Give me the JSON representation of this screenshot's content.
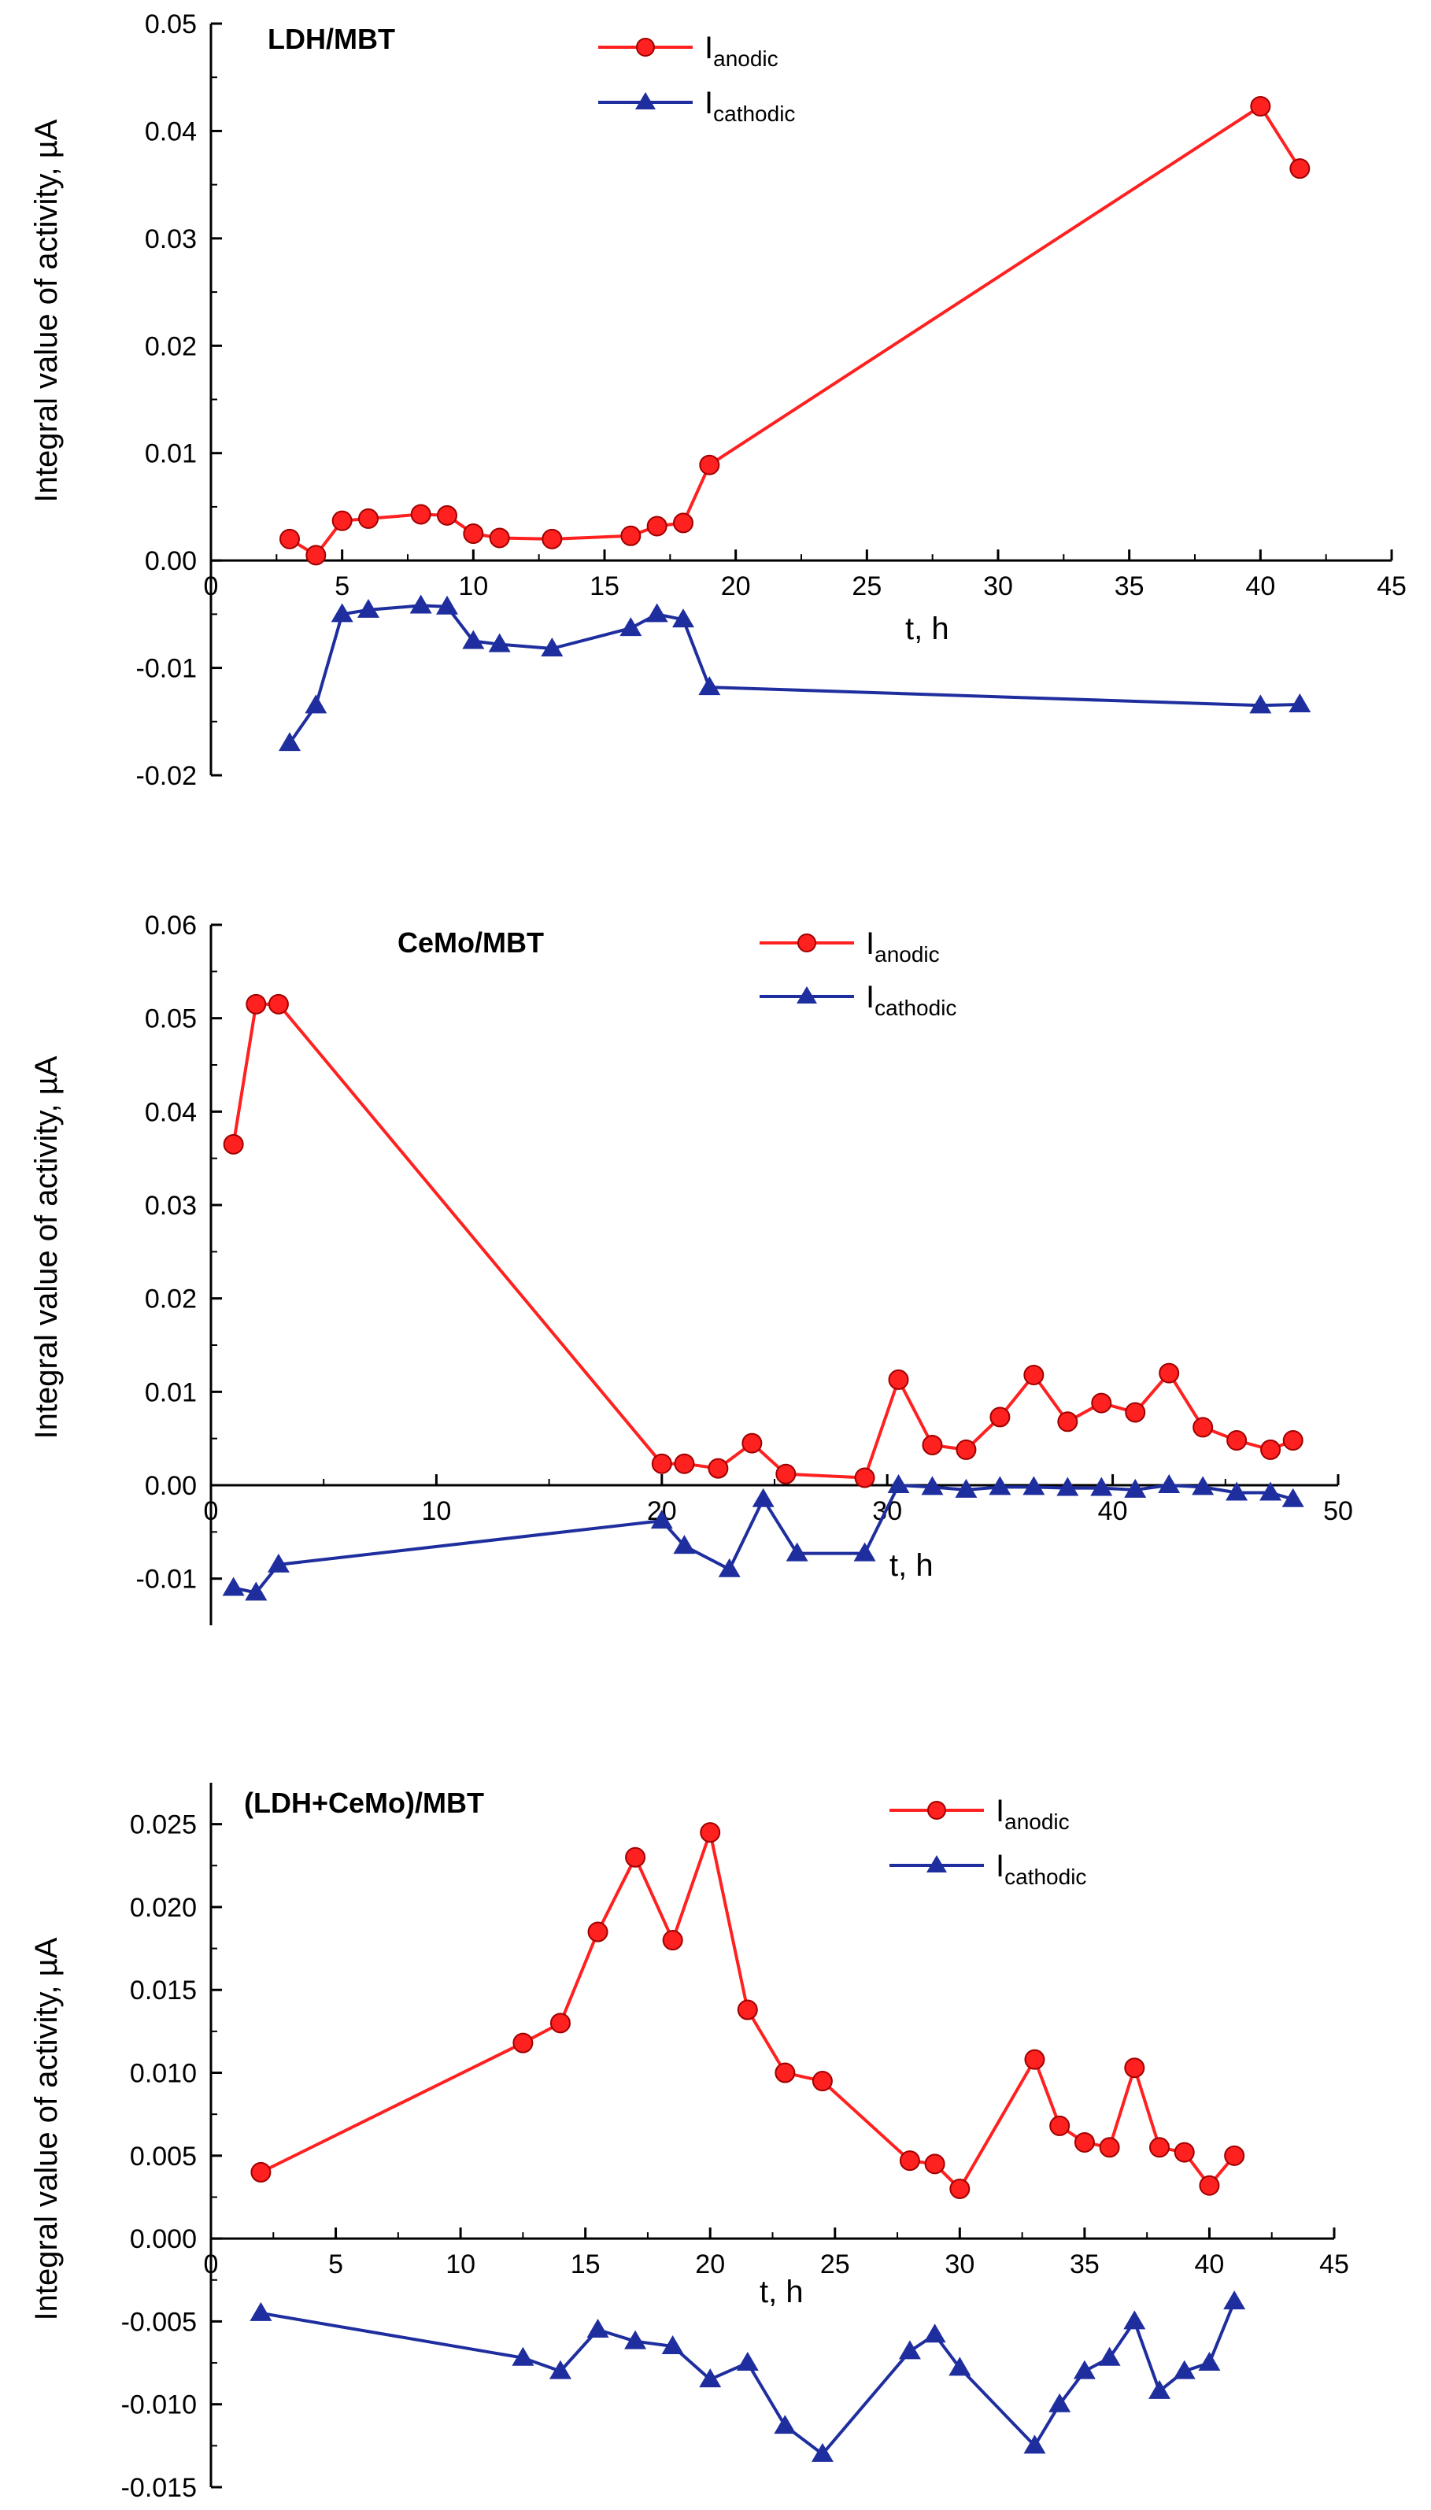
{
  "colors": {
    "anodic": "#ff2020",
    "cathodic": "#1f2e9e",
    "axis": "#000000"
  },
  "chart_data": [
    {
      "type": "line",
      "title": "LDH/MBT",
      "xlabel": "t, h",
      "ylabel": "Integral value of activity, µA",
      "xlim": [
        0,
        45
      ],
      "ylim": [
        -0.02,
        0.05
      ],
      "xticks": [
        {
          "v": 0,
          "label": "0"
        },
        {
          "v": 5,
          "label": "5"
        },
        {
          "v": 10,
          "label": "10"
        },
        {
          "v": 15,
          "label": "15"
        },
        {
          "v": 20,
          "label": "20"
        },
        {
          "v": 25,
          "label": "25"
        },
        {
          "v": 30,
          "label": "30"
        },
        {
          "v": 35,
          "label": "35"
        },
        {
          "v": 40,
          "label": "40"
        },
        {
          "v": 45,
          "label": "45"
        }
      ],
      "yticks": [
        {
          "v": -0.02,
          "label": "-0.02"
        },
        {
          "v": -0.01,
          "label": "-0.01"
        },
        {
          "v": 0.0,
          "label": "0.00"
        },
        {
          "v": 0.01,
          "label": "0.01"
        },
        {
          "v": 0.02,
          "label": "0.02"
        },
        {
          "v": 0.03,
          "label": "0.03"
        },
        {
          "v": 0.04,
          "label": "0.04"
        },
        {
          "v": 0.05,
          "label": "0.05"
        }
      ],
      "legend": {
        "position": "top-center"
      },
      "series": [
        {
          "name": "I",
          "name_sub": "anodic",
          "color": "#ff2020",
          "marker": "circle",
          "x": [
            3,
            4,
            5,
            6,
            8,
            9,
            10,
            11,
            13,
            16,
            17,
            18,
            19,
            40,
            41.5
          ],
          "y": [
            0.002,
            0.0005,
            0.0037,
            0.0039,
            0.0043,
            0.0042,
            0.0025,
            0.0021,
            0.002,
            0.0023,
            0.0032,
            0.0035,
            0.0089,
            0.0423,
            0.0365
          ]
        },
        {
          "name": "I",
          "name_sub": "cathodic",
          "color": "#1f2e9e",
          "marker": "triangle",
          "x": [
            3,
            4,
            5,
            6,
            8,
            9,
            10,
            11,
            13,
            16,
            17,
            18,
            19,
            40,
            41.5
          ],
          "y": [
            -0.017,
            -0.0135,
            -0.005,
            -0.0046,
            -0.0042,
            -0.0043,
            -0.0075,
            -0.0078,
            -0.0082,
            -0.0063,
            -0.005,
            -0.0055,
            -0.0118,
            -0.0135,
            -0.0134
          ]
        }
      ]
    },
    {
      "type": "line",
      "title": "CeMo/MBT",
      "xlabel": "t, h",
      "ylabel": "Integral value of activity, µA",
      "xlim": [
        0,
        50
      ],
      "ylim": [
        -0.015,
        0.06
      ],
      "xticks": [
        {
          "v": 0,
          "label": "0"
        },
        {
          "v": 10,
          "label": "10"
        },
        {
          "v": 20,
          "label": "20"
        },
        {
          "v": 30,
          "label": "30"
        },
        {
          "v": 40,
          "label": "40"
        },
        {
          "v": 50,
          "label": "50"
        }
      ],
      "yticks": [
        {
          "v": -0.01,
          "label": "-0.01"
        },
        {
          "v": 0.0,
          "label": "0.00"
        },
        {
          "v": 0.01,
          "label": "0.01"
        },
        {
          "v": 0.02,
          "label": "0.02"
        },
        {
          "v": 0.03,
          "label": "0.03"
        },
        {
          "v": 0.04,
          "label": "0.04"
        },
        {
          "v": 0.05,
          "label": "0.05"
        },
        {
          "v": 0.06,
          "label": "0.06"
        }
      ],
      "legend": {
        "position": "top-right"
      },
      "series": [
        {
          "name": "I",
          "name_sub": "anodic",
          "color": "#ff2020",
          "marker": "circle",
          "x": [
            1,
            2,
            3,
            20,
            21,
            22.5,
            24,
            25.5,
            29,
            30.5,
            32,
            33.5,
            35,
            36.5,
            38,
            39.5,
            41,
            42.5,
            44,
            45.5,
            47,
            48
          ],
          "y": [
            0.0365,
            0.0515,
            0.0515,
            0.0023,
            0.0023,
            0.0018,
            0.0045,
            0.0012,
            0.0008,
            0.0113,
            0.0043,
            0.0038,
            0.0073,
            0.0118,
            0.0068,
            0.0088,
            0.0078,
            0.012,
            0.0062,
            0.0048,
            0.0038,
            0.0048
          ]
        },
        {
          "name": "I",
          "name_sub": "cathodic",
          "color": "#1f2e9e",
          "marker": "triangle",
          "x": [
            1,
            2,
            3,
            20,
            21,
            23,
            24.5,
            26,
            29,
            30.5,
            32,
            33.5,
            35,
            36.5,
            38,
            39.5,
            41,
            42.5,
            44,
            45.5,
            47,
            48
          ],
          "y": [
            -0.011,
            -0.0115,
            -0.0085,
            -0.0038,
            -0.0065,
            -0.009,
            -0.0015,
            -0.0073,
            -0.0073,
            0.0,
            -0.0002,
            -0.0005,
            -0.0002,
            -0.0002,
            -0.0003,
            -0.0003,
            -0.0005,
            0.0,
            -0.0002,
            -0.0008,
            -0.0008,
            -0.0015
          ]
        }
      ]
    },
    {
      "type": "line",
      "title": "(LDH+CeMo)/MBT",
      "xlabel": "t, h",
      "ylabel": "Integral value of activity, µA",
      "xlim": [
        0,
        45
      ],
      "ylim": [
        -0.015,
        0.0275
      ],
      "xticks": [
        {
          "v": 0,
          "label": "0"
        },
        {
          "v": 5,
          "label": "5"
        },
        {
          "v": 10,
          "label": "10"
        },
        {
          "v": 15,
          "label": "15"
        },
        {
          "v": 20,
          "label": "20"
        },
        {
          "v": 25,
          "label": "25"
        },
        {
          "v": 30,
          "label": "30"
        },
        {
          "v": 35,
          "label": "35"
        },
        {
          "v": 40,
          "label": "40"
        },
        {
          "v": 45,
          "label": "45"
        }
      ],
      "yticks": [
        {
          "v": -0.015,
          "label": "-0.015"
        },
        {
          "v": -0.01,
          "label": "-0.010"
        },
        {
          "v": -0.005,
          "label": "-0.005"
        },
        {
          "v": 0.0,
          "label": "0.000"
        },
        {
          "v": 0.005,
          "label": "0.005"
        },
        {
          "v": 0.01,
          "label": "0.010"
        },
        {
          "v": 0.015,
          "label": "0.015"
        },
        {
          "v": 0.02,
          "label": "0.020"
        },
        {
          "v": 0.025,
          "label": "0.025"
        }
      ],
      "legend": {
        "position": "top-right"
      },
      "series": [
        {
          "name": "I",
          "name_sub": "anodic",
          "color": "#ff2020",
          "marker": "circle",
          "x": [
            2,
            12.5,
            14,
            15.5,
            17,
            18.5,
            20,
            21.5,
            23,
            24.5,
            28,
            29,
            30,
            33,
            34,
            35,
            36,
            37,
            38,
            39,
            40,
            41
          ],
          "y": [
            0.004,
            0.0118,
            0.013,
            0.0185,
            0.023,
            0.018,
            0.0245,
            0.0138,
            0.01,
            0.0095,
            0.0047,
            0.0045,
            0.003,
            0.0108,
            0.0068,
            0.0058,
            0.0055,
            0.0103,
            0.0055,
            0.0052,
            0.0032,
            0.005
          ]
        },
        {
          "name": "I",
          "name_sub": "cathodic",
          "color": "#1f2e9e",
          "marker": "triangle",
          "x": [
            2,
            12.5,
            14,
            15.5,
            17,
            18.5,
            20,
            21.5,
            23,
            24.5,
            28,
            29,
            30,
            33,
            34,
            35,
            36,
            37,
            38,
            39,
            40,
            41
          ],
          "y": [
            -0.0045,
            -0.0072,
            -0.008,
            -0.0055,
            -0.0062,
            -0.0065,
            -0.0085,
            -0.0075,
            -0.0113,
            -0.013,
            -0.0068,
            -0.0058,
            -0.0078,
            -0.0125,
            -0.01,
            -0.008,
            -0.0072,
            -0.005,
            -0.0092,
            -0.008,
            -0.0075,
            -0.0038
          ]
        }
      ]
    }
  ]
}
